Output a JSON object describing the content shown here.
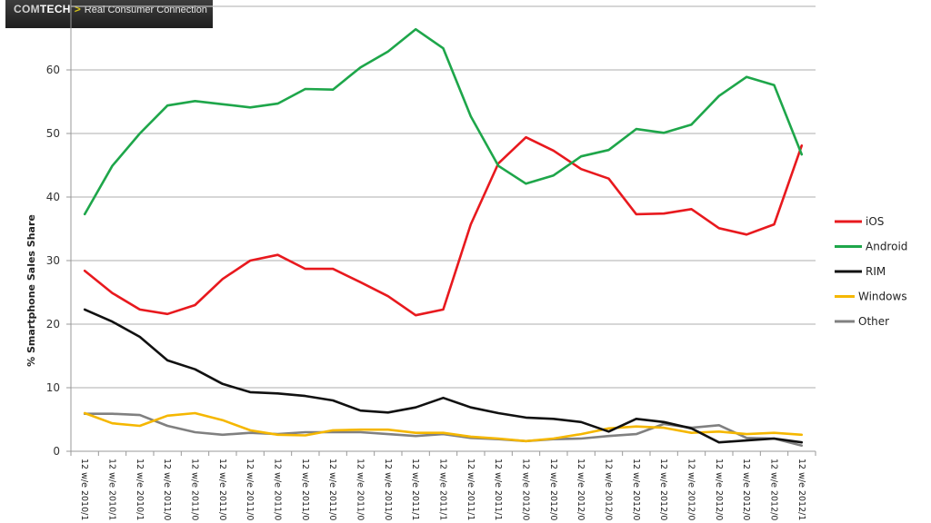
{
  "banner": {
    "brand_prefix": "COM",
    "brand_suffix": "TECH",
    "separator": ">",
    "tagline": "Real Consumer Connection"
  },
  "chart_data": {
    "type": "line",
    "title": "",
    "xlabel": "",
    "ylabel": "% Smartphone Sales Share",
    "ylim": [
      0,
      70
    ],
    "yticks": [
      0,
      10,
      20,
      30,
      40,
      50,
      60
    ],
    "grid": true,
    "legend_position": "right",
    "categories": [
      "12 w/e 2010/1",
      "12 w/e 2010/1",
      "12 w/e 2010/1",
      "12 w/e 2011/0",
      "12 w/e 2011/0",
      "12 w/e 2011/0",
      "12 w/e 2011/0",
      "12 w/e 2011/0",
      "12 w/e 2011/0",
      "12 w/e 2011/0",
      "12 w/e 2011/0",
      "12 w/e 2011/0",
      "12 w/e 2011/1",
      "12 w/e 2011/1",
      "12 w/e 2011/1",
      "12 w/e 2011/1",
      "12 w/e 2012/0",
      "12 w/e 2012/0",
      "12 w/e 2012/0",
      "12 w/e 2012/0",
      "12 w/e 2012/0",
      "12 w/e 2012/0",
      "12 w/e 2012/0",
      "12 w/e 2012/0",
      "12 w/e 2012/0",
      "12 w/e 2012/0",
      "12 w/e 2012/1"
    ],
    "series": [
      {
        "name": "iOS",
        "color": "#e8191e",
        "values": [
          28.4,
          24.9,
          22.3,
          21.6,
          23.0,
          27.1,
          30.0,
          30.9,
          28.7,
          28.7,
          26.6,
          24.4,
          21.4,
          22.3,
          35.7,
          45.3,
          49.4,
          47.3,
          44.4,
          42.9,
          37.3,
          37.4,
          38.1,
          35.1,
          34.1,
          35.7,
          48.1
        ]
      },
      {
        "name": "Android",
        "color": "#1ea64a",
        "values": [
          37.3,
          44.9,
          50.0,
          54.4,
          55.1,
          54.6,
          54.1,
          54.7,
          57.0,
          56.9,
          60.4,
          62.9,
          66.4,
          63.4,
          52.7,
          44.9,
          42.1,
          43.4,
          46.4,
          47.4,
          50.7,
          50.1,
          51.4,
          55.9,
          58.9,
          57.6,
          46.7
        ]
      },
      {
        "name": "RIM",
        "color": "#111111",
        "values": [
          22.3,
          20.4,
          18.0,
          14.3,
          12.9,
          10.6,
          9.3,
          9.1,
          8.7,
          8.0,
          6.4,
          6.1,
          6.9,
          8.4,
          6.9,
          6.0,
          5.3,
          5.1,
          4.6,
          3.1,
          5.1,
          4.6,
          3.6,
          1.4,
          1.7,
          2.0,
          1.4
        ]
      },
      {
        "name": "Windows",
        "color": "#f5b700",
        "values": [
          6.0,
          4.4,
          4.0,
          5.6,
          6.0,
          4.9,
          3.3,
          2.6,
          2.5,
          3.3,
          3.4,
          3.4,
          2.9,
          2.9,
          2.3,
          2.0,
          1.6,
          2.0,
          2.7,
          3.6,
          3.9,
          3.7,
          2.9,
          3.1,
          2.7,
          2.9,
          2.6
        ]
      },
      {
        "name": "Other",
        "color": "#808080",
        "values": [
          5.9,
          5.9,
          5.7,
          4.0,
          3.0,
          2.6,
          2.9,
          2.7,
          3.0,
          3.0,
          3.0,
          2.7,
          2.4,
          2.7,
          2.1,
          1.9,
          1.6,
          1.9,
          2.0,
          2.4,
          2.7,
          4.3,
          3.7,
          4.1,
          2.1,
          2.0,
          0.9
        ]
      }
    ]
  }
}
